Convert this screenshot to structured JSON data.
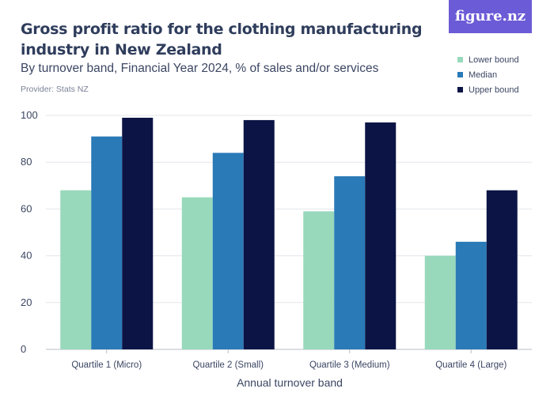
{
  "brand": {
    "logo_text": "figure.nz"
  },
  "chart_data": {
    "type": "bar",
    "title": "Gross profit ratio for the clothing manufacturing industry in New Zealand",
    "subtitle": "By turnover band, Financial Year 2024, % of sales and/or services",
    "provider": "Provider: Stats NZ",
    "xlabel": "Annual turnover band",
    "ylabel": "",
    "ylim": [
      0,
      100
    ],
    "yticks": [
      0,
      20,
      40,
      60,
      80,
      100
    ],
    "grid": true,
    "legend_position": "top-right",
    "categories": [
      "Quartile 1 (Micro)",
      "Quartile 2 (Small)",
      "Quartile 3 (Medium)",
      "Quartile 4 (Large)"
    ],
    "series": [
      {
        "name": "Lower bound",
        "color": "#98d9bc",
        "values": [
          68,
          65,
          59,
          40
        ]
      },
      {
        "name": "Median",
        "color": "#2a7ab8",
        "values": [
          91,
          84,
          74,
          46
        ]
      },
      {
        "name": "Upper bound",
        "color": "#0c1445",
        "values": [
          99,
          98,
          97,
          68
        ]
      }
    ]
  }
}
